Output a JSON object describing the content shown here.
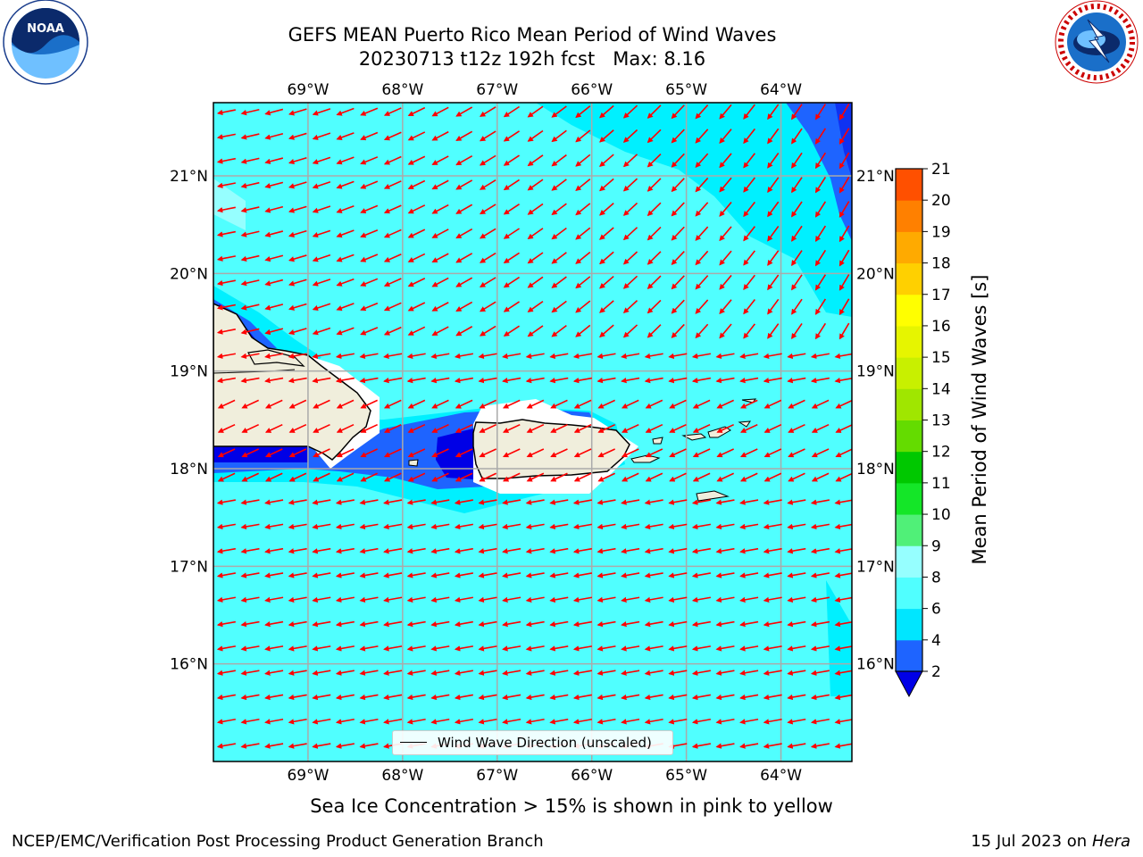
{
  "header": {
    "title_line1": "GEFS MEAN Puerto Rico Mean Period of Wind Waves",
    "title_line2": "20230713 t12z 192h fcst   Max: 8.16"
  },
  "logos": {
    "left": "NOAA",
    "left_ring_text": "NATIONAL OCEANIC AND ATMOSPHERIC ADMINISTRATION · U.S. DEPARTMENT OF COMMERCE",
    "right_ring_text": "NATIONAL WEATHER SERVICE"
  },
  "map": {
    "lon_labels": [
      "69°W",
      "68°W",
      "67°W",
      "66°W",
      "65°W",
      "64°W"
    ],
    "lat_labels": [
      "21°N",
      "20°N",
      "19°N",
      "18°N",
      "17°N",
      "16°N"
    ],
    "lon_range": [
      -70.0,
      -63.25
    ],
    "lat_range": [
      15.0,
      21.75
    ],
    "legend_label": "Wind Wave Direction (unscaled)",
    "arrow_color": "#ff0000"
  },
  "colorbar": {
    "title": "Mean Period of Wind Waves [s]",
    "ticks": [
      "2",
      "4",
      "6",
      "8",
      "9",
      "10",
      "11",
      "12",
      "13",
      "14",
      "15",
      "16",
      "17",
      "18",
      "19",
      "20",
      "21"
    ],
    "colors": [
      "#1e64ff",
      "#00e6ff",
      "#50ffff",
      "#96ffff",
      "#50f078",
      "#14e628",
      "#00c800",
      "#64dc00",
      "#a0e600",
      "#c8f000",
      "#e6f500",
      "#ffff00",
      "#ffd000",
      "#ffaa00",
      "#ff8000",
      "#ff5000",
      "#ff2000",
      "#ff0000"
    ],
    "extend_low_color": "#0000e6"
  },
  "footer": {
    "subtitle": "Sea Ice Concentration > 15% is shown in pink to yellow",
    "left": "NCEP/EMC/Verification Post Processing Product Generation Branch",
    "right_date": "15 Jul 2023 on ",
    "right_host": "Hera"
  }
}
